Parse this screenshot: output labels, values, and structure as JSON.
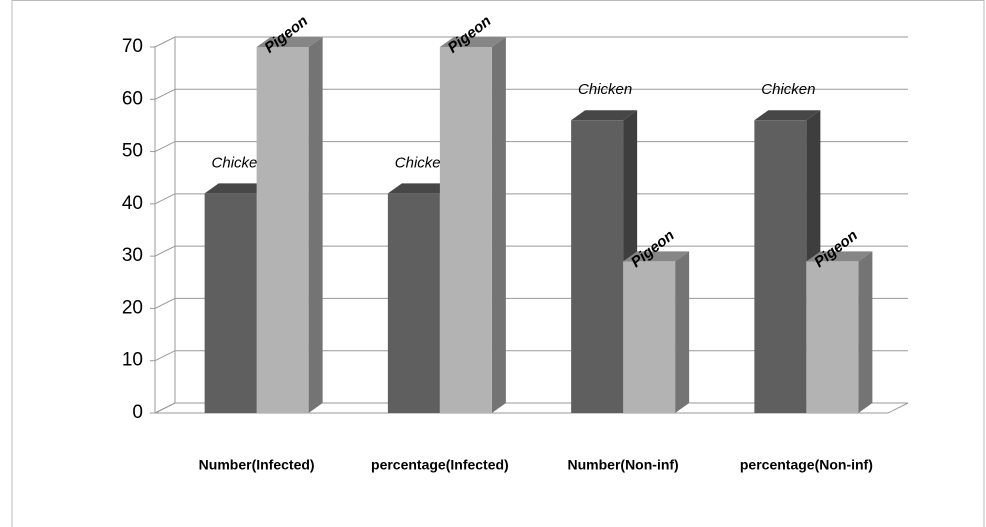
{
  "chart_data": {
    "type": "bar3d",
    "categories": [
      "Number(Infected)",
      "percentage(Infected)",
      "Number(Non-inf)",
      "percentage(Non-inf)"
    ],
    "series": [
      {
        "name": "Chicken",
        "color": "#5f5f5f",
        "values": [
          42,
          42,
          56,
          56
        ]
      },
      {
        "name": "Pigeon",
        "color": "#b3b3b3",
        "values": [
          70,
          70,
          29,
          29
        ]
      }
    ],
    "ylim": [
      0,
      70
    ],
    "yticks": [
      0,
      10,
      20,
      30,
      40,
      50,
      60,
      70
    ],
    "grid": true
  }
}
